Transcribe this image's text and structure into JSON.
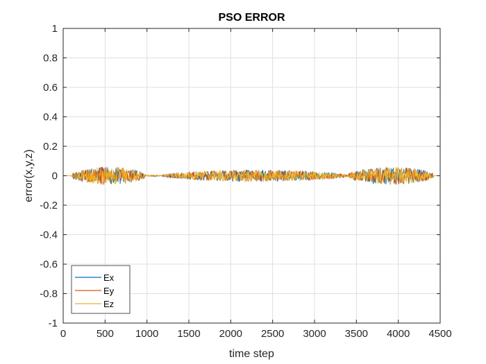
{
  "chart_data": {
    "type": "line",
    "title": "PSO ERROR",
    "xlabel": "time step",
    "ylabel": "error(x,y,z)",
    "xlim": [
      0,
      4500
    ],
    "ylim": [
      -1,
      1
    ],
    "xticks": [
      0,
      500,
      1000,
      1500,
      2000,
      2500,
      3000,
      3500,
      4000,
      4500
    ],
    "xtick_labels": [
      "0",
      "500",
      "1000",
      "1500",
      "2000",
      "2500",
      "3000",
      "3500",
      "4000",
      "4500"
    ],
    "yticks": [
      -1,
      -0.8,
      -0.6,
      -0.4,
      -0.2,
      0,
      0.2,
      0.4,
      0.6,
      0.8,
      1
    ],
    "ytick_labels": [
      "-1",
      "-0.8",
      "-0.6",
      "-0.4",
      "-0.2",
      "0",
      "0.2",
      "0.4",
      "0.6",
      "0.8",
      "1"
    ],
    "grid": true,
    "legend_position": "bottom-left",
    "x_step": 5,
    "series": [
      {
        "name": "Ex",
        "color": "#0072BD",
        "segments": [
          {
            "x_range": [
              0,
              100
            ],
            "amplitude": [
              0.0,
              0.0
            ]
          },
          {
            "x_range": [
              100,
              980
            ],
            "amplitude": [
              0.04,
              0.06
            ]
          },
          {
            "x_range": [
              980,
              1180
            ],
            "amplitude": [
              0.0,
              0.005
            ]
          },
          {
            "x_range": [
              1180,
              3400
            ],
            "amplitude": [
              0.02,
              0.04
            ]
          },
          {
            "x_range": [
              3400,
              4420
            ],
            "amplitude": [
              0.04,
              0.06
            ]
          },
          {
            "x_range": [
              4420,
              4460
            ],
            "amplitude": [
              0.0,
              0.0
            ]
          }
        ]
      },
      {
        "name": "Ey",
        "color": "#D95319",
        "segments": [
          {
            "x_range": [
              0,
              100
            ],
            "amplitude": [
              0.0,
              0.0
            ]
          },
          {
            "x_range": [
              100,
              980
            ],
            "amplitude": [
              0.04,
              0.06
            ]
          },
          {
            "x_range": [
              980,
              1180
            ],
            "amplitude": [
              0.0,
              0.005
            ]
          },
          {
            "x_range": [
              1180,
              3400
            ],
            "amplitude": [
              0.02,
              0.04
            ]
          },
          {
            "x_range": [
              3400,
              4420
            ],
            "amplitude": [
              0.04,
              0.06
            ]
          },
          {
            "x_range": [
              4420,
              4460
            ],
            "amplitude": [
              0.0,
              0.0
            ]
          }
        ]
      },
      {
        "name": "Ez",
        "color": "#EDB120",
        "segments": [
          {
            "x_range": [
              0,
              100
            ],
            "amplitude": [
              0.0,
              0.0
            ]
          },
          {
            "x_range": [
              100,
              980
            ],
            "amplitude": [
              0.04,
              0.06
            ]
          },
          {
            "x_range": [
              980,
              1180
            ],
            "amplitude": [
              0.0,
              0.005
            ]
          },
          {
            "x_range": [
              1180,
              3400
            ],
            "amplitude": [
              0.02,
              0.04
            ]
          },
          {
            "x_range": [
              3400,
              4420
            ],
            "amplitude": [
              0.04,
              0.06
            ]
          },
          {
            "x_range": [
              4420,
              4460
            ],
            "amplitude": [
              0.0,
              0.0
            ]
          }
        ]
      }
    ]
  }
}
